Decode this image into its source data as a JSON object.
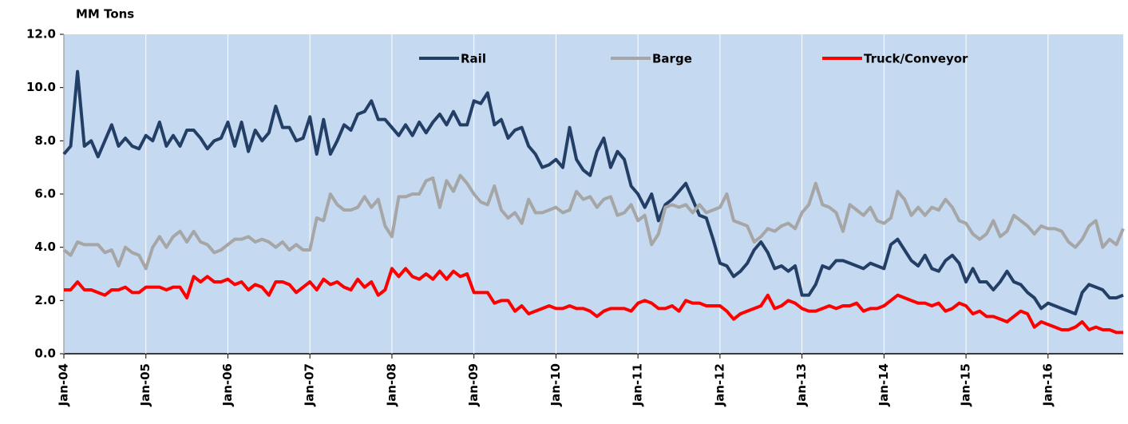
{
  "chart_data": {
    "type": "line",
    "y_label": "MM Tons",
    "categories": [
      "Jan-04",
      null,
      null,
      null,
      null,
      null,
      null,
      null,
      null,
      null,
      null,
      null,
      "Jan-05",
      null,
      null,
      null,
      null,
      null,
      null,
      null,
      null,
      null,
      null,
      null,
      "Jan-06",
      null,
      null,
      null,
      null,
      null,
      null,
      null,
      null,
      null,
      null,
      null,
      "Jan-07",
      null,
      null,
      null,
      null,
      null,
      null,
      null,
      null,
      null,
      null,
      null,
      "Jan-08",
      null,
      null,
      null,
      null,
      null,
      null,
      null,
      null,
      null,
      null,
      null,
      "Jan-09",
      null,
      null,
      null,
      null,
      null,
      null,
      null,
      null,
      null,
      null,
      null,
      "Jan-10",
      null,
      null,
      null,
      null,
      null,
      null,
      null,
      null,
      null,
      null,
      null,
      "Jan-11",
      null,
      null,
      null,
      null,
      null,
      null,
      null,
      null,
      null,
      null,
      null,
      "Jan-12",
      null,
      null,
      null,
      null,
      null,
      null,
      null,
      null,
      null,
      null,
      null,
      "Jan-13",
      null,
      null,
      null,
      null,
      null,
      null,
      null,
      null,
      null,
      null,
      null,
      "Jan-14",
      null,
      null,
      null,
      null,
      null,
      null,
      null,
      null,
      null,
      null,
      null,
      "Jan-15",
      null,
      null,
      null,
      null,
      null,
      null,
      null,
      null,
      null,
      null,
      null,
      "Jan-16",
      null,
      null,
      null,
      null,
      null,
      null,
      null,
      null,
      null,
      null,
      null
    ],
    "series": [
      {
        "name": "Rail",
        "color": "#243f66",
        "values": [
          7.5,
          7.8,
          10.6,
          7.8,
          8.0,
          7.4,
          8.0,
          8.6,
          7.8,
          8.1,
          7.8,
          7.7,
          8.2,
          8.0,
          8.7,
          7.8,
          8.2,
          7.8,
          8.4,
          8.4,
          8.1,
          7.7,
          8.0,
          8.1,
          8.7,
          7.8,
          8.7,
          7.6,
          8.4,
          8.0,
          8.3,
          9.3,
          8.5,
          8.5,
          8.0,
          8.1,
          8.9,
          7.5,
          8.8,
          7.5,
          8.0,
          8.6,
          8.4,
          9.0,
          9.1,
          9.5,
          8.8,
          8.8,
          8.5,
          8.2,
          8.6,
          8.2,
          8.7,
          8.3,
          8.7,
          9.0,
          8.6,
          9.1,
          8.6,
          8.6,
          9.5,
          9.4,
          9.8,
          8.6,
          8.8,
          8.1,
          8.4,
          8.5,
          7.8,
          7.5,
          7.0,
          7.1,
          7.3,
          7.0,
          8.5,
          7.3,
          6.9,
          6.7,
          7.6,
          8.1,
          7.0,
          7.6,
          7.3,
          6.3,
          6.0,
          5.5,
          6.0,
          5.0,
          5.6,
          5.8,
          6.1,
          6.4,
          5.8,
          5.2,
          5.1,
          4.3,
          3.4,
          3.3,
          2.9,
          3.1,
          3.4,
          3.9,
          4.2,
          3.8,
          3.2,
          3.3,
          3.1,
          3.3,
          2.2,
          2.2,
          2.6,
          3.3,
          3.2,
          3.5,
          3.5,
          3.4,
          3.3,
          3.2,
          3.4,
          3.3,
          3.2,
          4.1,
          4.3,
          3.9,
          3.5,
          3.3,
          3.7,
          3.2,
          3.1,
          3.5,
          3.7,
          3.4,
          2.7,
          3.2,
          2.7,
          2.7,
          2.4,
          2.7,
          3.1,
          2.7,
          2.6,
          2.3,
          2.1,
          1.7,
          1.9,
          1.8,
          1.7,
          1.6,
          1.5,
          2.3,
          2.6,
          2.5,
          2.4,
          2.1,
          2.1,
          2.2
        ]
      },
      {
        "name": "Barge",
        "color": "#a6a6a6",
        "values": [
          3.9,
          3.7,
          4.2,
          4.1,
          4.1,
          4.1,
          3.8,
          3.9,
          3.3,
          4.0,
          3.8,
          3.7,
          3.2,
          4.0,
          4.4,
          4.0,
          4.4,
          4.6,
          4.2,
          4.6,
          4.2,
          4.1,
          3.8,
          3.9,
          4.1,
          4.3,
          4.3,
          4.4,
          4.2,
          4.3,
          4.2,
          4.0,
          4.2,
          3.9,
          4.1,
          3.9,
          3.9,
          5.1,
          5.0,
          6.0,
          5.6,
          5.4,
          5.4,
          5.5,
          5.9,
          5.5,
          5.8,
          4.8,
          4.4,
          5.9,
          5.9,
          6.0,
          6.0,
          6.5,
          6.6,
          5.5,
          6.5,
          6.1,
          6.7,
          6.4,
          6.0,
          5.7,
          5.6,
          6.3,
          5.4,
          5.1,
          5.3,
          4.9,
          5.8,
          5.3,
          5.3,
          5.4,
          5.5,
          5.3,
          5.4,
          6.1,
          5.8,
          5.9,
          5.5,
          5.8,
          5.9,
          5.2,
          5.3,
          5.6,
          5.0,
          5.2,
          4.1,
          4.5,
          5.5,
          5.6,
          5.5,
          5.6,
          5.3,
          5.6,
          5.3,
          5.4,
          5.5,
          6.0,
          5.0,
          4.9,
          4.8,
          4.2,
          4.4,
          4.7,
          4.6,
          4.8,
          4.9,
          4.7,
          5.3,
          5.6,
          6.4,
          5.6,
          5.5,
          5.3,
          4.6,
          5.6,
          5.4,
          5.2,
          5.5,
          5.0,
          4.9,
          5.1,
          6.1,
          5.8,
          5.2,
          5.5,
          5.2,
          5.5,
          5.4,
          5.8,
          5.5,
          5.0,
          4.9,
          4.5,
          4.3,
          4.5,
          5.0,
          4.4,
          4.6,
          5.2,
          5.0,
          4.8,
          4.5,
          4.8,
          4.7,
          4.7,
          4.6,
          4.2,
          4.0,
          4.3,
          4.8,
          5.0,
          4.0,
          4.3,
          4.1,
          4.7
        ]
      },
      {
        "name": "Truck/Conveyor",
        "color": "#ff0000",
        "values": [
          2.4,
          2.4,
          2.7,
          2.4,
          2.4,
          2.3,
          2.2,
          2.4,
          2.4,
          2.5,
          2.3,
          2.3,
          2.5,
          2.5,
          2.5,
          2.4,
          2.5,
          2.5,
          2.1,
          2.9,
          2.7,
          2.9,
          2.7,
          2.7,
          2.8,
          2.6,
          2.7,
          2.4,
          2.6,
          2.5,
          2.2,
          2.7,
          2.7,
          2.6,
          2.3,
          2.5,
          2.7,
          2.4,
          2.8,
          2.6,
          2.7,
          2.5,
          2.4,
          2.8,
          2.5,
          2.7,
          2.2,
          2.4,
          3.2,
          2.9,
          3.2,
          2.9,
          2.8,
          3.0,
          2.8,
          3.1,
          2.8,
          3.1,
          2.9,
          3.0,
          2.3,
          2.3,
          2.3,
          1.9,
          2.0,
          2.0,
          1.6,
          1.8,
          1.5,
          1.6,
          1.7,
          1.8,
          1.7,
          1.7,
          1.8,
          1.7,
          1.7,
          1.6,
          1.4,
          1.6,
          1.7,
          1.7,
          1.7,
          1.6,
          1.9,
          2.0,
          1.9,
          1.7,
          1.7,
          1.8,
          1.6,
          2.0,
          1.9,
          1.9,
          1.8,
          1.8,
          1.8,
          1.6,
          1.3,
          1.5,
          1.6,
          1.7,
          1.8,
          2.2,
          1.7,
          1.8,
          2.0,
          1.9,
          1.7,
          1.6,
          1.6,
          1.7,
          1.8,
          1.7,
          1.8,
          1.8,
          1.9,
          1.6,
          1.7,
          1.7,
          1.8,
          2.0,
          2.2,
          2.1,
          2.0,
          1.9,
          1.9,
          1.8,
          1.9,
          1.6,
          1.7,
          1.9,
          1.8,
          1.5,
          1.6,
          1.4,
          1.4,
          1.3,
          1.2,
          1.4,
          1.6,
          1.5,
          1.0,
          1.2,
          1.1,
          1.0,
          0.9,
          0.9,
          1.0,
          1.2,
          0.9,
          1.0,
          0.9,
          0.9,
          0.8,
          0.8
        ]
      }
    ],
    "ylim": [
      0,
      12
    ],
    "yticks": [
      {
        "value": 0,
        "label": "0.0"
      },
      {
        "value": 2,
        "label": "2.0"
      },
      {
        "value": 4,
        "label": "4.0"
      },
      {
        "value": 6,
        "label": "6.0"
      },
      {
        "value": 8,
        "label": "8.0"
      },
      {
        "value": 10,
        "label": "10.0"
      },
      {
        "value": 12,
        "label": "12.0"
      }
    ],
    "legend": "top"
  }
}
